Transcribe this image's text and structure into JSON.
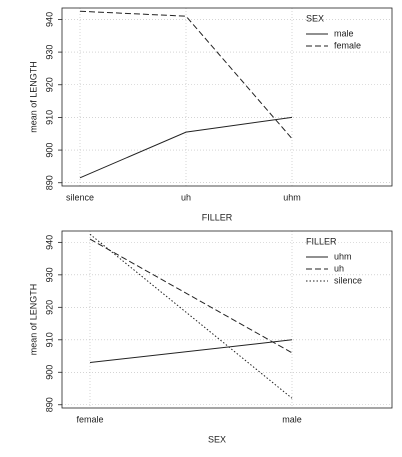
{
  "chart_data": [
    {
      "type": "line",
      "xlabel": "FILLER",
      "ylabel": "mean of LENGTH",
      "categories": [
        "silence",
        "uh",
        "uhm"
      ],
      "legend_title": "SEX",
      "legend": "upper right",
      "grid": true,
      "ylim": [
        889,
        943.5
      ],
      "yticks": [
        890,
        900,
        910,
        920,
        930,
        940
      ],
      "series": [
        {
          "name": "male",
          "color": "#222222",
          "dash": "solid",
          "values": [
            891.5,
            905.5,
            910
          ]
        },
        {
          "name": "female",
          "color": "#222222",
          "dash": "dashed",
          "values": [
            942.5,
            941,
            903.5
          ]
        }
      ]
    },
    {
      "type": "line",
      "xlabel": "SEX",
      "ylabel": "mean of LENGTH",
      "categories": [
        "female",
        "male"
      ],
      "legend_title": "FILLER",
      "legend": "upper right",
      "grid": true,
      "ylim": [
        889,
        943.5
      ],
      "yticks": [
        890,
        900,
        910,
        920,
        930,
        940
      ],
      "series": [
        {
          "name": "uhm",
          "color": "#222222",
          "dash": "solid",
          "values": [
            903,
            910
          ]
        },
        {
          "name": "uh",
          "color": "#222222",
          "dash": "dashed",
          "values": [
            941,
            906
          ]
        },
        {
          "name": "silence",
          "color": "#222222",
          "dash": "dotted",
          "values": [
            942.5,
            892
          ]
        }
      ]
    }
  ]
}
